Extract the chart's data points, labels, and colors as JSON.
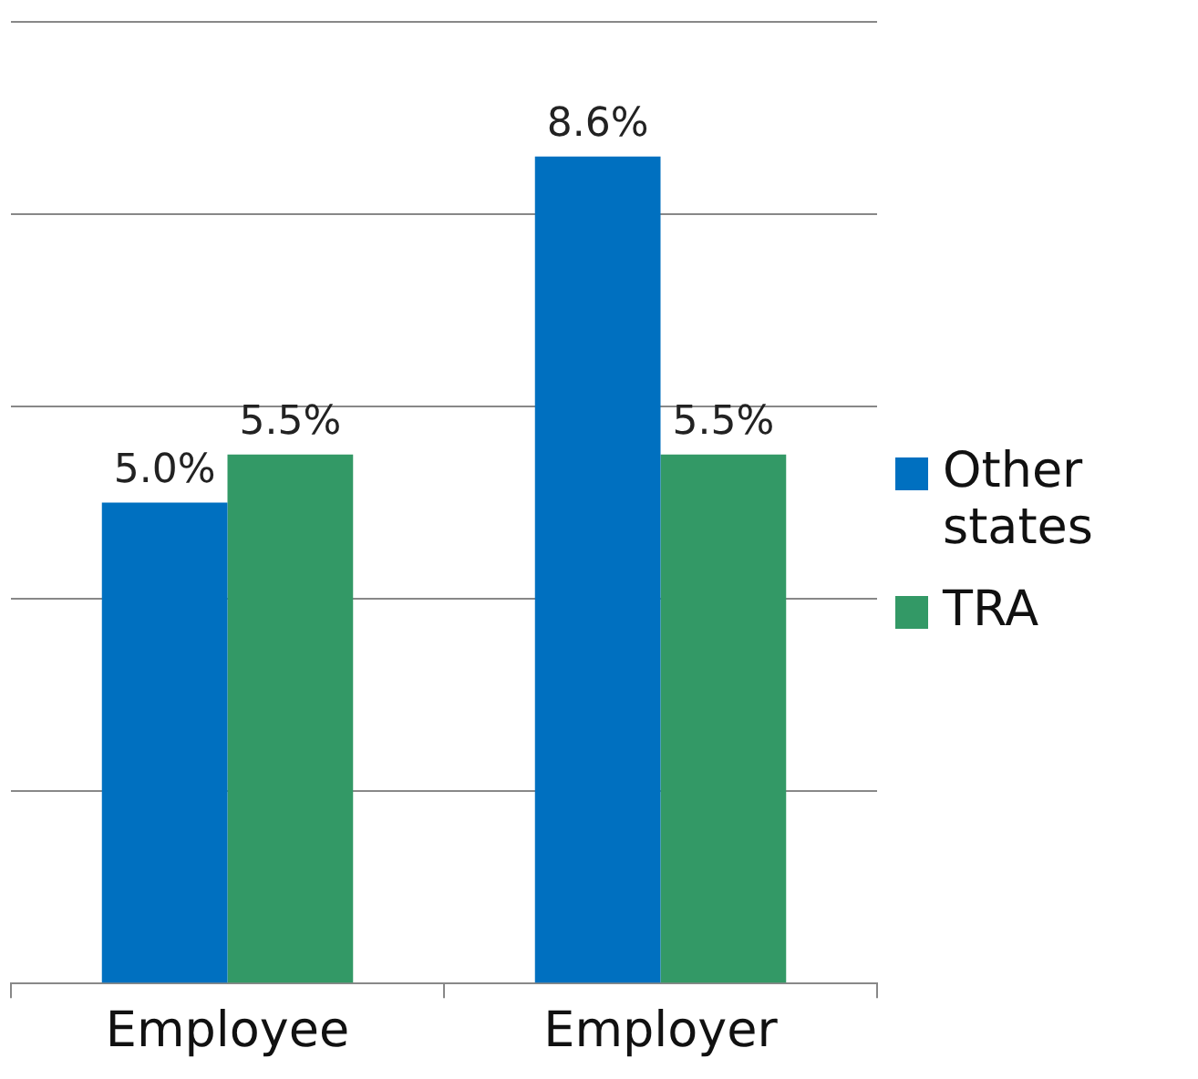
{
  "chart_data": {
    "type": "bar",
    "categories": [
      "Employee",
      "Employer"
    ],
    "series": [
      {
        "name": "Other states",
        "color": "#0070c0",
        "values": [
          5.0,
          8.6
        ],
        "value_labels": [
          "5.0%",
          "8.6%"
        ]
      },
      {
        "name": "TRA",
        "color": "#339966",
        "values": [
          5.5,
          5.5
        ],
        "value_labels": [
          "5.5%",
          "5.5%"
        ]
      }
    ],
    "ylim": [
      0,
      10
    ],
    "yticks": [
      {
        "value": 0,
        "label": null
      },
      {
        "value": 2,
        "label": null
      },
      {
        "value": 4,
        "label": null
      },
      {
        "value": 6,
        "label": null
      },
      {
        "value": 8,
        "label": null
      },
      {
        "value": 10,
        "label": null
      }
    ],
    "grid": "y",
    "legend": "right",
    "tick_labels": "x"
  }
}
